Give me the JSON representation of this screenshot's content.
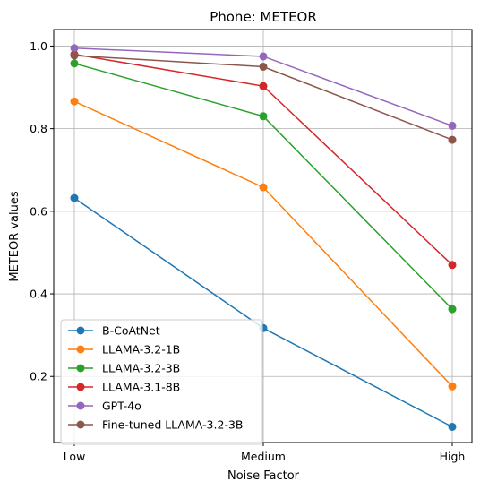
{
  "chart_data": {
    "type": "line",
    "title": "Phone: METEOR",
    "xlabel": "Noise Factor",
    "ylabel": "METEOR values",
    "categories": [
      "Low",
      "Medium",
      "High"
    ],
    "yticks": [
      0.2,
      0.4,
      0.6,
      0.8,
      1.0
    ],
    "ytick_labels": [
      "0.2",
      "0.4",
      "0.6",
      "0.8",
      "1.0"
    ],
    "ylim": [
      0.04,
      1.04
    ],
    "grid": true,
    "legend_position": "lower-left",
    "series": [
      {
        "name": "B-CoAtNet",
        "color": "#1f77b4",
        "values": [
          0.632,
          0.317,
          0.078
        ]
      },
      {
        "name": "LLAMA-3.2-1B",
        "color": "#ff7f0e",
        "values": [
          0.866,
          0.658,
          0.176
        ]
      },
      {
        "name": "LLAMA-3.2-3B",
        "color": "#2ca02c",
        "values": [
          0.958,
          0.83,
          0.363
        ]
      },
      {
        "name": "LLAMA-3.1-8B",
        "color": "#d62728",
        "values": [
          0.98,
          0.903,
          0.47
        ]
      },
      {
        "name": "GPT-4o",
        "color": "#9467bd",
        "values": [
          0.995,
          0.975,
          0.807
        ]
      },
      {
        "name": "Fine-tuned LLAMA-3.2-3B",
        "color": "#8c564b",
        "values": [
          0.977,
          0.95,
          0.773
        ]
      }
    ]
  }
}
